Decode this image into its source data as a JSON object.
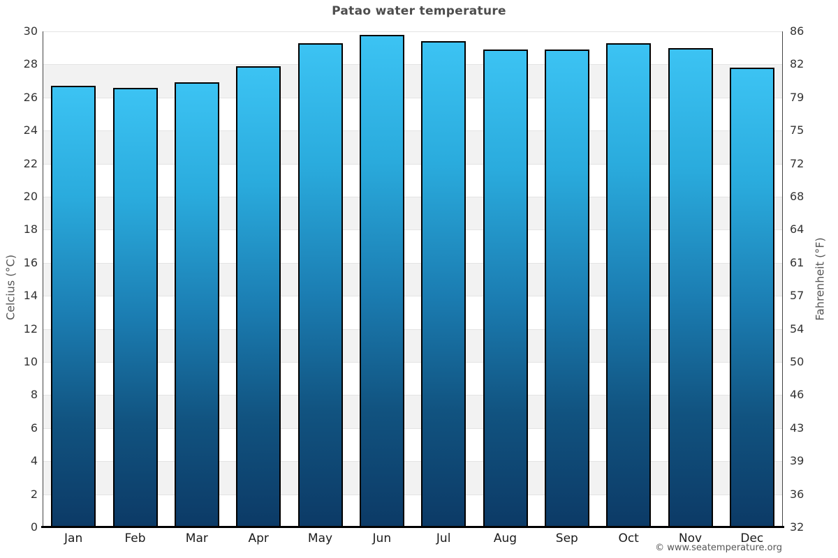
{
  "title": "Patao water temperature",
  "footer": "© www.seatemperature.org",
  "axes": {
    "left_label": "Celcius (°C)",
    "right_label": "Fahrenheit (°F)"
  },
  "colors": {
    "bar_top": "#3cc3f3",
    "bar_q1": "#2aabdd",
    "bar_mid": "#1b7db2",
    "bar_q3": "#115380",
    "bar_bottom": "#0c3a66",
    "bar_border": "#000000",
    "stripe": "#f2f2f2",
    "gridline": "#e4e4e4",
    "axis_line": "#444444",
    "bottom_axis": "#000000",
    "title_text": "#4d4d4d",
    "tick_text": "#333333",
    "month_text": "#1a1a1a",
    "axis_title_text": "#555555",
    "footer_text": "#555555"
  },
  "chart_data": {
    "type": "bar",
    "title": "Patao water temperature",
    "categories": [
      "Jan",
      "Feb",
      "Mar",
      "Apr",
      "May",
      "Jun",
      "Jul",
      "Aug",
      "Sep",
      "Oct",
      "Nov",
      "Dec"
    ],
    "values": [
      26.7,
      26.6,
      26.9,
      27.9,
      29.3,
      29.8,
      29.4,
      28.9,
      28.9,
      29.3,
      29.0,
      27.8
    ],
    "xlabel": "",
    "ylabel_left": "Celcius (°C)",
    "ylabel_right": "Fahrenheit (°F)",
    "ylim": [
      0,
      30
    ],
    "y_ticks_celsius": [
      0,
      2,
      4,
      6,
      8,
      10,
      12,
      14,
      16,
      18,
      20,
      22,
      24,
      26,
      28,
      30
    ],
    "y_ticks_fahrenheit": [
      32,
      36,
      39,
      43,
      46,
      50,
      54,
      57,
      61,
      64,
      68,
      72,
      75,
      79,
      82,
      86
    ],
    "grid": "horizontal bands, alternating white/light-gray every 2°C",
    "legend": "none",
    "bar_style": "vertical gradient light cyan (top) to dark navy (bottom), black outline"
  }
}
